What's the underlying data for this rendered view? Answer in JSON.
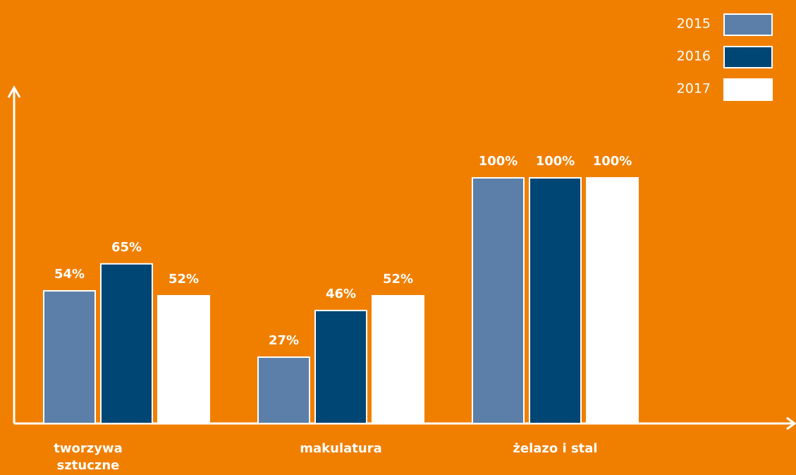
{
  "chart_data": {
    "type": "bar",
    "categories": [
      "tworzywa sztuczne",
      "makulatura",
      "żelazo i stal"
    ],
    "series": [
      {
        "name": "2015",
        "color": "#5b7fa8",
        "values": [
          54,
          27,
          100
        ],
        "value_labels": [
          "54%",
          "27%",
          "100%"
        ]
      },
      {
        "name": "2016",
        "color": "#004674",
        "values": [
          65,
          46,
          100
        ],
        "value_labels": [
          "65%",
          "46%",
          "100%"
        ]
      },
      {
        "name": "2017",
        "color": "#ffffff",
        "values": [
          52,
          52,
          100
        ],
        "value_labels": [
          "52%",
          "52%",
          "100%"
        ]
      }
    ],
    "ylim": [
      0,
      100
    ],
    "legend": "upper right"
  }
}
